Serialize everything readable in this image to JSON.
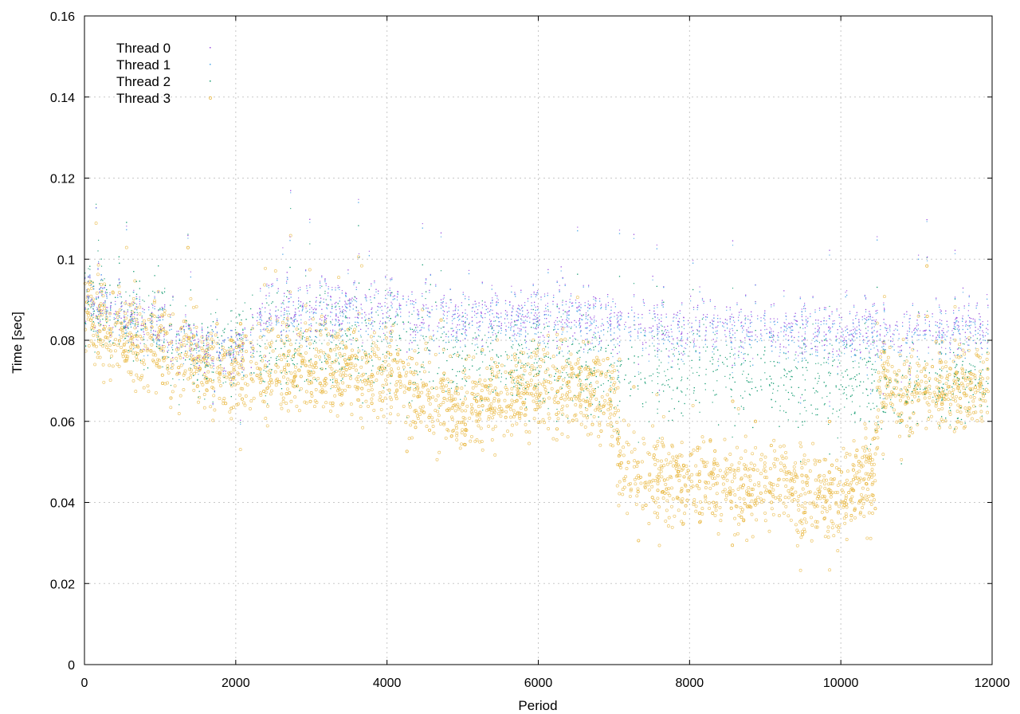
{
  "chart_data": {
    "type": "scatter",
    "title": "",
    "xlabel": "Period",
    "ylabel": "Time [sec]",
    "xlim": [
      0,
      12000
    ],
    "ylim": [
      0,
      0.16
    ],
    "xticks": [
      0,
      2000,
      4000,
      6000,
      8000,
      10000,
      12000
    ],
    "xtick_labels": [
      "0",
      "2000",
      "4000",
      "6000",
      "8000",
      "10000",
      "12000"
    ],
    "yticks": [
      0,
      0.02,
      0.04,
      0.06,
      0.08,
      0.1,
      0.12,
      0.14,
      0.16
    ],
    "ytick_labels": [
      "0",
      "0.02",
      "0.04",
      "0.06",
      "0.08",
      "0.1",
      "0.12",
      "0.14",
      "0.16"
    ],
    "grid": true,
    "legend_position": "top-left",
    "series": [
      {
        "name": "Thread 0",
        "color": "#9a4fe0",
        "marker": "dot",
        "trend": [
          [
            0,
            0.092
          ],
          [
            500,
            0.087
          ],
          [
            1000,
            0.083
          ],
          [
            1500,
            0.079
          ],
          [
            1800,
            0.078
          ],
          [
            2200,
            0.078
          ],
          [
            2300,
            0.088
          ],
          [
            3000,
            0.088
          ],
          [
            4000,
            0.088
          ],
          [
            4300,
            0.087
          ],
          [
            5000,
            0.086
          ],
          [
            6000,
            0.086
          ],
          [
            7000,
            0.086
          ],
          [
            7500,
            0.084
          ],
          [
            8000,
            0.083
          ],
          [
            9000,
            0.083
          ],
          [
            9500,
            0.083
          ],
          [
            10000,
            0.081
          ],
          [
            10500,
            0.083
          ],
          [
            11000,
            0.083
          ],
          [
            11900,
            0.083
          ]
        ]
      },
      {
        "name": "Thread 1",
        "color": "#4aa6e8",
        "marker": "dot",
        "trend": [
          [
            0,
            0.092
          ],
          [
            500,
            0.086
          ],
          [
            1000,
            0.082
          ],
          [
            1500,
            0.078
          ],
          [
            1800,
            0.078
          ],
          [
            2200,
            0.077
          ],
          [
            2300,
            0.087
          ],
          [
            3000,
            0.087
          ],
          [
            4000,
            0.087
          ],
          [
            4300,
            0.086
          ],
          [
            5000,
            0.085
          ],
          [
            6000,
            0.085
          ],
          [
            7000,
            0.085
          ],
          [
            7500,
            0.083
          ],
          [
            8000,
            0.082
          ],
          [
            9000,
            0.082
          ],
          [
            9500,
            0.082
          ],
          [
            10000,
            0.08
          ],
          [
            10500,
            0.082
          ],
          [
            11000,
            0.082
          ],
          [
            11900,
            0.082
          ]
        ]
      },
      {
        "name": "Thread 2",
        "color": "#0f9a6e",
        "marker": "dot",
        "trend": [
          [
            0,
            0.091
          ],
          [
            500,
            0.087
          ],
          [
            1000,
            0.083
          ],
          [
            1500,
            0.076
          ],
          [
            1800,
            0.079
          ],
          [
            2200,
            0.081
          ],
          [
            2300,
            0.079
          ],
          [
            3000,
            0.08
          ],
          [
            4000,
            0.079
          ],
          [
            4300,
            0.078
          ],
          [
            5000,
            0.076
          ],
          [
            6000,
            0.074
          ],
          [
            7000,
            0.073
          ],
          [
            8000,
            0.073
          ],
          [
            9000,
            0.071
          ],
          [
            10000,
            0.069
          ],
          [
            10500,
            0.069
          ],
          [
            11000,
            0.069
          ],
          [
            11900,
            0.07
          ]
        ]
      },
      {
        "name": "Thread 3",
        "color": "#e8b53c",
        "marker": "circle",
        "trend": [
          [
            0,
            0.089
          ],
          [
            300,
            0.082
          ],
          [
            1000,
            0.078
          ],
          [
            1500,
            0.074
          ],
          [
            2000,
            0.073
          ],
          [
            3000,
            0.074
          ],
          [
            4000,
            0.071
          ],
          [
            4500,
            0.066
          ],
          [
            5000,
            0.063
          ],
          [
            5500,
            0.066
          ],
          [
            6000,
            0.068
          ],
          [
            6500,
            0.068
          ],
          [
            7000,
            0.067
          ],
          [
            7100,
            0.048
          ],
          [
            8000,
            0.045
          ],
          [
            9000,
            0.043
          ],
          [
            9200,
            0.048
          ],
          [
            9500,
            0.042
          ],
          [
            10000,
            0.04
          ],
          [
            10200,
            0.045
          ],
          [
            10450,
            0.046
          ],
          [
            10500,
            0.07
          ],
          [
            11000,
            0.068
          ],
          [
            11900,
            0.068
          ]
        ]
      }
    ]
  }
}
